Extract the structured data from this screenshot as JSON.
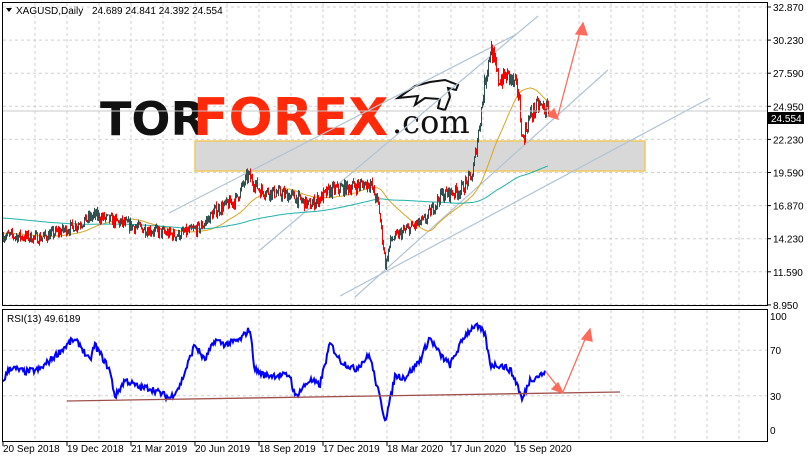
{
  "header": {
    "symbol": "XAGUSD,Daily",
    "ohlc": "24.689 24.841 24.392 24.554",
    "collapse_icon": "triangle-down-icon"
  },
  "watermark": {
    "text": "TORFOREX.com",
    "part1": "TOR",
    "part2": "FOREX",
    "part3": ".com",
    "color_dark": "#111111",
    "color_red": "#ff2a0a"
  },
  "colors": {
    "bull": "#2f4f4f",
    "bear": "#ff0000",
    "ma_fast": "#daa520",
    "ma_slow": "#20b2aa",
    "rsi": "#0000ff",
    "arrow": "#ff6b5b",
    "trendline": "#b0c4d4",
    "rsi_support": "#a0504a",
    "zone": "#d8d8d8",
    "zone_border": "#f0c860"
  },
  "chart_data": [
    {
      "type": "candlestick",
      "title": "XAGUSD,Daily",
      "ylim": [
        8.95,
        32.87
      ],
      "y_ticks": [
        "32.870",
        "30.230",
        "27.590",
        "24.950",
        "22.230",
        "19.590",
        "16.870",
        "14.230",
        "11.590",
        "8.950"
      ],
      "current_price": "24.554",
      "x_ticks": [
        "20 Sep 2018",
        "19 Dec 2018",
        "21 Mar 2019",
        "20 Jun 2019",
        "18 Sep 2019",
        "17 Dec 2019",
        "18 Mar 2020",
        "17 Jun 2020",
        "15 Sep 2020"
      ],
      "grid": true,
      "close_approx": [
        [
          "2018-09-20",
          14.6
        ],
        [
          "2018-11-11",
          14.4
        ],
        [
          "2018-12-24",
          15.2
        ],
        [
          "2019-01-28",
          16.2
        ],
        [
          "2019-02-26",
          15.7
        ],
        [
          "2019-04-02",
          15.2
        ],
        [
          "2019-05-22",
          14.6
        ],
        [
          "2019-06-26",
          15.2
        ],
        [
          "2019-07-18",
          16.6
        ],
        [
          "2019-08-15",
          17.4
        ],
        [
          "2019-09-02",
          19.4
        ],
        [
          "2019-09-19",
          18.2
        ],
        [
          "2019-11-01",
          17.8
        ],
        [
          "2019-11-29",
          17.0
        ],
        [
          "2019-12-28",
          18.2
        ],
        [
          "2020-01-18",
          18.4
        ],
        [
          "2020-02-22",
          18.8
        ],
        [
          "2020-03-05",
          17.0
        ],
        [
          "2020-03-15",
          12.2
        ],
        [
          "2020-03-22",
          14.2
        ],
        [
          "2020-04-12",
          15.0
        ],
        [
          "2020-05-10",
          15.8
        ],
        [
          "2020-06-01",
          17.8
        ],
        [
          "2020-06-29",
          18.2
        ],
        [
          "2020-07-16",
          19.4
        ],
        [
          "2020-07-25",
          23.0
        ],
        [
          "2020-08-03",
          27.0
        ],
        [
          "2020-08-11",
          29.6
        ],
        [
          "2020-08-22",
          27.0
        ],
        [
          "2020-09-05",
          27.4
        ],
        [
          "2020-09-19",
          26.2
        ],
        [
          "2020-09-25",
          22.2
        ],
        [
          "2020-10-06",
          24.2
        ],
        [
          "2020-10-18",
          25.0
        ],
        [
          "2020-11-01",
          24.554
        ]
      ],
      "moving_averages": [
        {
          "color": "#daa520"
        },
        {
          "color": "#20b2aa"
        }
      ],
      "support_zone": [
        20.0,
        22.2
      ]
    },
    {
      "type": "line",
      "title": "RSI(13) 49.6189",
      "ylim": [
        0,
        100
      ],
      "y_ticks": [
        "100",
        "70",
        "30",
        "0"
      ],
      "values": [
        [
          "2018-09-20",
          43
        ],
        [
          "2018-09-30",
          55
        ],
        [
          "2018-10-21",
          51
        ],
        [
          "2018-11-11",
          53
        ],
        [
          "2018-12-28",
          79
        ],
        [
          "2019-01-07",
          75
        ],
        [
          "2019-01-21",
          60
        ],
        [
          "2019-01-28",
          75
        ],
        [
          "2019-02-18",
          53
        ],
        [
          "2019-02-26",
          29
        ],
        [
          "2019-03-12",
          44
        ],
        [
          "2019-04-02",
          37
        ],
        [
          "2019-04-16",
          37
        ],
        [
          "2019-05-15",
          28
        ],
        [
          "2019-05-29",
          39
        ],
        [
          "2019-06-19",
          75
        ],
        [
          "2019-07-03",
          61
        ],
        [
          "2019-07-18",
          79
        ],
        [
          "2019-08-01",
          75
        ],
        [
          "2019-08-22",
          79
        ],
        [
          "2019-09-05",
          89
        ],
        [
          "2019-09-12",
          53
        ],
        [
          "2019-09-26",
          48
        ],
        [
          "2019-11-01",
          48
        ],
        [
          "2019-11-08",
          29
        ],
        [
          "2019-11-29",
          44
        ],
        [
          "2019-12-13",
          39
        ],
        [
          "2019-12-28",
          76
        ],
        [
          "2020-01-11",
          61
        ],
        [
          "2020-02-01",
          53
        ],
        [
          "2020-02-22",
          66
        ],
        [
          "2020-03-01",
          44
        ],
        [
          "2020-03-15",
          9
        ],
        [
          "2020-03-22",
          26
        ],
        [
          "2020-03-29",
          48
        ],
        [
          "2020-04-12",
          46
        ],
        [
          "2020-05-03",
          61
        ],
        [
          "2020-05-17",
          81
        ],
        [
          "2020-06-01",
          66
        ],
        [
          "2020-06-15",
          57
        ],
        [
          "2020-07-06",
          83
        ],
        [
          "2020-07-20",
          92
        ],
        [
          "2020-08-03",
          85
        ],
        [
          "2020-08-11",
          57
        ],
        [
          "2020-08-25",
          57
        ],
        [
          "2020-09-08",
          53
        ],
        [
          "2020-09-19",
          39
        ],
        [
          "2020-09-25",
          26
        ],
        [
          "2020-10-06",
          44
        ],
        [
          "2020-10-20",
          48
        ],
        [
          "2020-10-27",
          49.6
        ]
      ]
    }
  ]
}
